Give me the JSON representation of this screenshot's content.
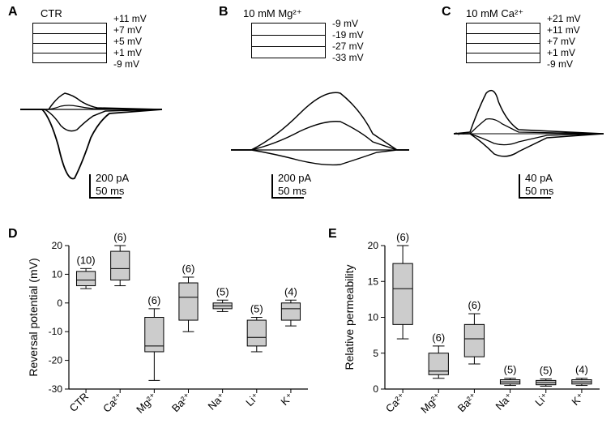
{
  "panels": {
    "A": {
      "label": "A",
      "title": "CTR",
      "voltages": [
        "+11 mV",
        "+7 mV",
        "+5 mV",
        "+1 mV",
        "-9 mV"
      ],
      "scale": {
        "current": "200 pA",
        "time": "50 ms"
      }
    },
    "B": {
      "label": "B",
      "title": "10 mM Mg²⁺",
      "voltages": [
        "-9 mV",
        "-19 mV",
        "-27 mV",
        "-33 mV"
      ],
      "scale": {
        "current": "200 pA",
        "time": "50 ms"
      }
    },
    "C": {
      "label": "C",
      "title": "10 mM Ca²⁺",
      "voltages": [
        "+21 mV",
        "+11 mV",
        "+7 mV",
        "+1 mV",
        "-9 mV"
      ],
      "scale": {
        "current": "40 pA",
        "time": "50 ms"
      }
    }
  },
  "boxplots": {
    "D": {
      "label": "D",
      "ylabel": "Reversal potential (mV)",
      "ylim": [
        -30,
        20
      ],
      "ytick_step": 10,
      "categories": [
        "CTR",
        "Ca²⁺",
        "Mg²⁺",
        "Ba²⁺",
        "Na⁺",
        "Li⁺",
        "K⁺"
      ],
      "n": [
        "(10)",
        "(6)",
        "(6)",
        "(6)",
        "(5)",
        "(5)",
        "(4)"
      ],
      "boxes": [
        {
          "q1": 6,
          "median": 8,
          "q3": 11,
          "whisker_low": 5,
          "whisker_high": 12
        },
        {
          "q1": 8,
          "median": 12,
          "q3": 18,
          "whisker_low": 6,
          "whisker_high": 20
        },
        {
          "q1": -17,
          "median": -15,
          "q3": -5,
          "whisker_low": -27,
          "whisker_high": -2
        },
        {
          "q1": -6,
          "median": 2,
          "q3": 7,
          "whisker_low": -10,
          "whisker_high": 9
        },
        {
          "q1": -2,
          "median": -1,
          "q3": 0,
          "whisker_low": -3,
          "whisker_high": 1
        },
        {
          "q1": -15,
          "median": -12,
          "q3": -6,
          "whisker_low": -17,
          "whisker_high": -5
        },
        {
          "q1": -6,
          "median": -2,
          "q3": 0,
          "whisker_low": -8,
          "whisker_high": 1
        }
      ],
      "box_fill": "#cccccc",
      "background_color": "#ffffff"
    },
    "E": {
      "label": "E",
      "ylabel": "Relative permeability",
      "ylim": [
        0,
        20
      ],
      "ytick_step": 5,
      "categories": [
        "Ca²⁺",
        "Mg²⁺",
        "Ba²⁺",
        "Na⁺",
        "Li⁺",
        "K⁺"
      ],
      "n": [
        "(6)",
        "(6)",
        "(6)",
        "(5)",
        "(5)",
        "(4)"
      ],
      "boxes": [
        {
          "q1": 9,
          "median": 14,
          "q3": 17.5,
          "whisker_low": 7,
          "whisker_high": 20
        },
        {
          "q1": 2,
          "median": 2.5,
          "q3": 5,
          "whisker_low": 1.5,
          "whisker_high": 6
        },
        {
          "q1": 4.5,
          "median": 7,
          "q3": 9,
          "whisker_low": 3.5,
          "whisker_high": 10.5
        },
        {
          "q1": 0.7,
          "median": 1,
          "q3": 1.3,
          "whisker_low": 0.5,
          "whisker_high": 1.5
        },
        {
          "q1": 0.6,
          "median": 0.9,
          "q3": 1.2,
          "whisker_low": 0.4,
          "whisker_high": 1.4
        },
        {
          "q1": 0.7,
          "median": 1,
          "q3": 1.3,
          "whisker_low": 0.5,
          "whisker_high": 1.5
        }
      ],
      "box_fill": "#cccccc",
      "background_color": "#ffffff"
    }
  },
  "trace_color": "#000000"
}
